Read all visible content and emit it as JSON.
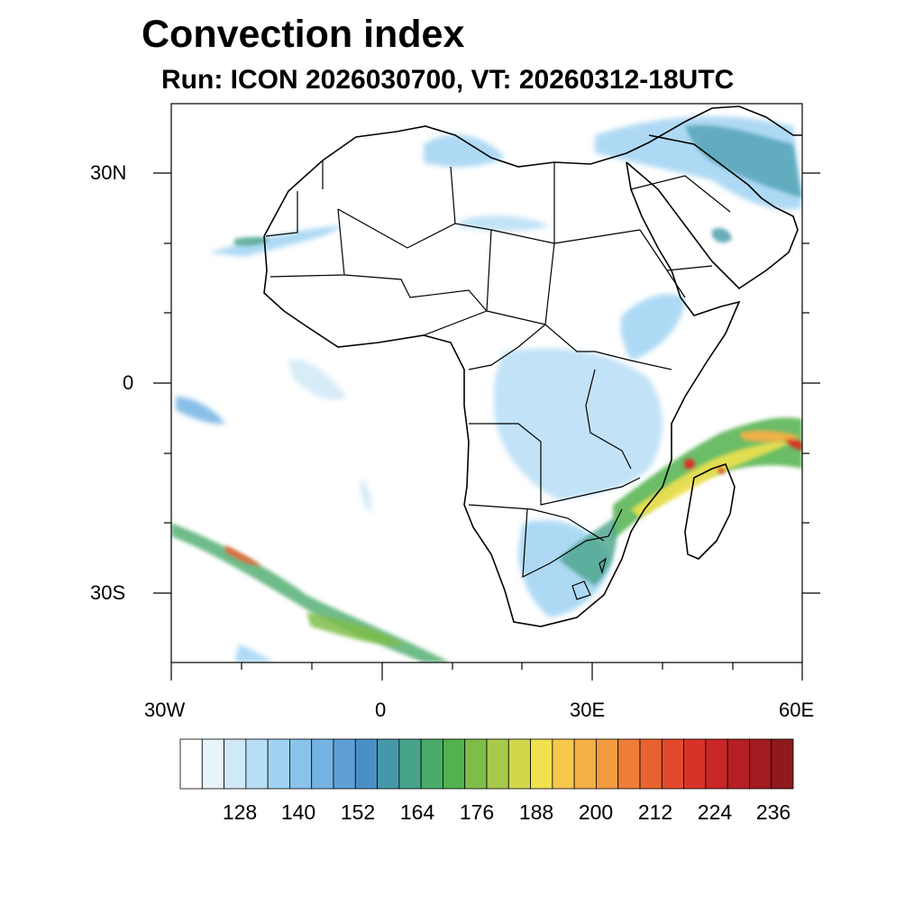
{
  "title": "Convection index",
  "subtitle": "Run: ICON 2026030700,  VT: 20260312-18UTC",
  "map": {
    "lon_range": [
      -30,
      60
    ],
    "lat_range": [
      -40,
      40
    ],
    "lon_ticks": [
      "30W",
      "0",
      "30E",
      "60E"
    ],
    "lat_ticks": [
      "30N",
      "0",
      "30S"
    ],
    "features": [
      "continent-outline",
      "country-borders",
      "convection-index-fields"
    ]
  },
  "colorbar": {
    "labels": [
      "128",
      "140",
      "152",
      "164",
      "176",
      "188",
      "200",
      "212",
      "224",
      "236"
    ],
    "colors": [
      "#ffffff",
      "#e8f4fc",
      "#d0e9f8",
      "#b8def6",
      "#a0d3f3",
      "#8ac4ec",
      "#74b3e3",
      "#5e9fd8",
      "#4a90c7",
      "#4598a9",
      "#47a28a",
      "#4aab6a",
      "#52b24e",
      "#7fbd4a",
      "#a8c94a",
      "#d2d64b",
      "#f0e14f",
      "#f6c84e",
      "#f5b047",
      "#f39a3f",
      "#ee7d38",
      "#e96330",
      "#e14a2c",
      "#d93228",
      "#c92727",
      "#b52024",
      "#a11b20",
      "#8e1a1c"
    ]
  }
}
